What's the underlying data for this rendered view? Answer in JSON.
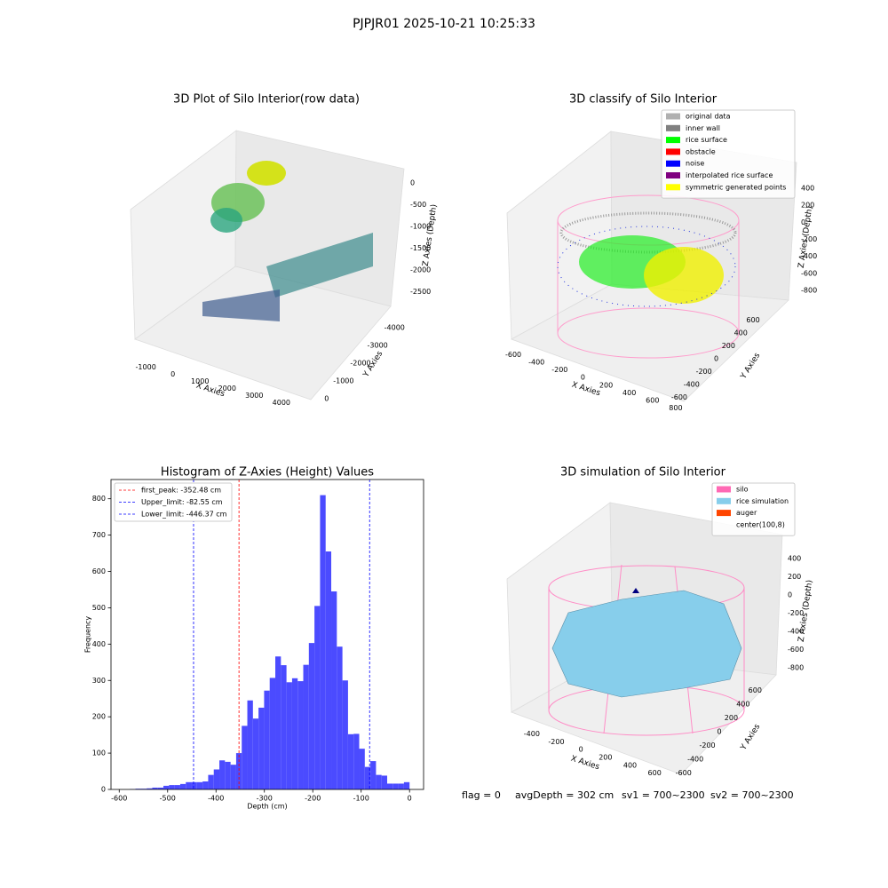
{
  "suptitle": "PJPJR01 2025-10-21 10:25:33",
  "status": [
    "flag = 0",
    "avgDepth = 302 cm",
    "sv1 = 700~2300",
    "sv2 = 700~2300"
  ],
  "chart_data": [
    {
      "type": "scatter3d",
      "title": "3D Plot of Silo Interior(row data)",
      "xlabel": "X Axies",
      "ylabel": "Y Axies",
      "zlabel": "Z Axies (Depth)",
      "xlim": [
        -1300,
        4300
      ],
      "xticks": [
        -1000,
        0,
        1000,
        2000,
        3000,
        4000
      ],
      "ylim": [
        -4300,
        300
      ],
      "yticks": [
        -4000,
        -3000,
        -2000,
        -1000,
        0
      ],
      "zlim": [
        -2800,
        200
      ],
      "zticks": [
        -2500,
        -2000,
        -1500,
        -1000,
        -500,
        0
      ]
    },
    {
      "type": "scatter3d",
      "title": "3D classify of Silo Interior",
      "xlabel": "X Axies",
      "ylabel": "Y Axies",
      "zlabel": "Z Axies (Depth)",
      "xlim": [
        -700,
        900
      ],
      "xticks": [
        -600,
        -400,
        -200,
        0,
        200,
        400,
        600,
        800
      ],
      "ylim": [
        -700,
        700
      ],
      "yticks": [
        -600,
        -400,
        -200,
        0,
        200,
        400,
        600
      ],
      "zlim": [
        -900,
        500
      ],
      "zticks": [
        -800,
        -600,
        -400,
        -200,
        0,
        200,
        400
      ],
      "legend": [
        {
          "name": "original data",
          "color": "#b0b0b0"
        },
        {
          "name": "inner wall",
          "color": "#808080"
        },
        {
          "name": "rice surface",
          "color": "#00ff00"
        },
        {
          "name": "obstacle",
          "color": "#ff0000"
        },
        {
          "name": "noise",
          "color": "#0000ff"
        },
        {
          "name": "interpolated rice surface",
          "color": "#800080"
        },
        {
          "name": "symmetric generated points",
          "color": "#ffff00"
        }
      ]
    },
    {
      "type": "histogram",
      "title": "Histogram of Z-Axies (Height) Values",
      "xlabel": "Depth (cm)",
      "ylabel": "Frequency",
      "color": "#4b4bff",
      "bins": [
        -578,
        -566.44,
        -554.88,
        -543.32,
        -531.76,
        -520.2,
        -508.64,
        -497.08,
        -485.52,
        -473.96,
        -462.4,
        -450.84,
        -439.28,
        -427.72,
        -416.16,
        -404.6,
        -393.04,
        -381.48,
        -369.92,
        -358.36,
        -346.8,
        -335.24,
        -323.68,
        -312.12,
        -300.56,
        -289,
        -277.44,
        -265.88,
        -254.32,
        -242.76,
        -231.2,
        -219.64,
        -208.08,
        -196.52,
        -184.96,
        -173.4,
        -161.84,
        -150.28,
        -138.72,
        -127.16,
        -115.6,
        -104.04,
        -92.48,
        -80.92,
        -69.36,
        -57.8,
        -46.24,
        -34.68,
        -23.12,
        -11.56,
        0
      ],
      "values": [
        1,
        2,
        2,
        3,
        5,
        5,
        10,
        12,
        12,
        15,
        20,
        20,
        20,
        22,
        40,
        55,
        80,
        76,
        68,
        100,
        175,
        245,
        195,
        225,
        272,
        307,
        366,
        342,
        295,
        306,
        298,
        343,
        403,
        505,
        810,
        655,
        545,
        393,
        300,
        152,
        153,
        112,
        62,
        78,
        40,
        38,
        16,
        16,
        16,
        20
      ],
      "xlim": [
        -617,
        29
      ],
      "xticks": [
        -600,
        -500,
        -400,
        -300,
        -200,
        -100,
        0
      ],
      "ylim": [
        0,
        853
      ],
      "yticks": [
        0,
        100,
        200,
        300,
        400,
        500,
        600,
        700,
        800
      ],
      "lines": [
        {
          "name": "first_peak: -352.48 cm",
          "value": -352.48,
          "color": "#ff0000"
        },
        {
          "name": "Upper_limit: -82.55 cm",
          "value": -82.55,
          "color": "#0000ff"
        },
        {
          "name": "Lower_limit: -446.37 cm",
          "value": -446.37,
          "color": "#0000ff"
        }
      ],
      "legend_loc": "upper left"
    },
    {
      "type": "surface3d",
      "title": "3D simulation of Silo Interior",
      "xlabel": "X Axies",
      "ylabel": "Y Axies",
      "zlabel": "Z Axies (Depth)",
      "xlim": [
        -500,
        700
      ],
      "xticks": [
        -400,
        -200,
        0,
        200,
        400,
        600
      ],
      "ylim": [
        -700,
        700
      ],
      "yticks": [
        -600,
        -400,
        -200,
        0,
        200,
        400,
        600
      ],
      "zlim": [
        -900,
        500
      ],
      "zticks": [
        -800,
        -600,
        -400,
        -200,
        0,
        200,
        400
      ],
      "legend": [
        {
          "name": "silo",
          "color": "#ff69b4"
        },
        {
          "name": "rice simulation",
          "color": "#87ceeb"
        },
        {
          "name": "auger",
          "color": "#ff4500"
        },
        {
          "name": "center(100,8)"
        }
      ]
    }
  ]
}
